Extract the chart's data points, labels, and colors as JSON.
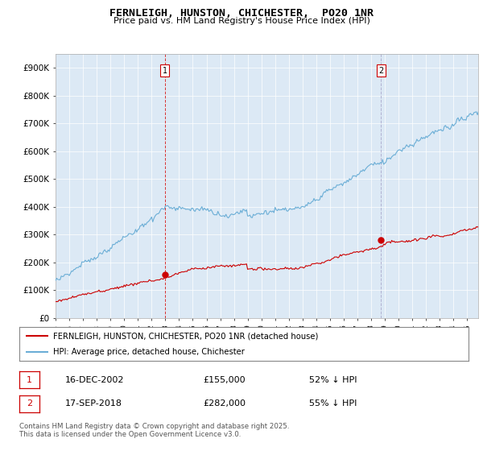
{
  "title": "FERNLEIGH, HUNSTON, CHICHESTER,  PO20 1NR",
  "subtitle": "Price paid vs. HM Land Registry's House Price Index (HPI)",
  "ylabel_ticks": [
    "£0",
    "£100K",
    "£200K",
    "£300K",
    "£400K",
    "£500K",
    "£600K",
    "£700K",
    "£800K",
    "£900K"
  ],
  "ylim": [
    0,
    950000
  ],
  "xlim_start": 1995.0,
  "xlim_end": 2025.8,
  "hpi_color": "#6baed6",
  "price_color": "#cc0000",
  "vline1_color": "#cc0000",
  "vline2_color": "#aaaacc",
  "marker1_x": 2002.96,
  "marker1_y": 155000,
  "marker1_label": "1",
  "marker2_x": 2018.71,
  "marker2_y": 282000,
  "marker2_label": "2",
  "legend_line1": "FERNLEIGH, HUNSTON, CHICHESTER, PO20 1NR (detached house)",
  "legend_line2": "HPI: Average price, detached house, Chichester",
  "table_row1_num": "1",
  "table_row1_date": "16-DEC-2002",
  "table_row1_price": "£155,000",
  "table_row1_hpi": "52% ↓ HPI",
  "table_row2_num": "2",
  "table_row2_date": "17-SEP-2018",
  "table_row2_price": "£282,000",
  "table_row2_hpi": "55% ↓ HPI",
  "footnote": "Contains HM Land Registry data © Crown copyright and database right 2025.\nThis data is licensed under the Open Government Licence v3.0.",
  "bg_color": "#ffffff",
  "plot_bg_color": "#dce9f5"
}
